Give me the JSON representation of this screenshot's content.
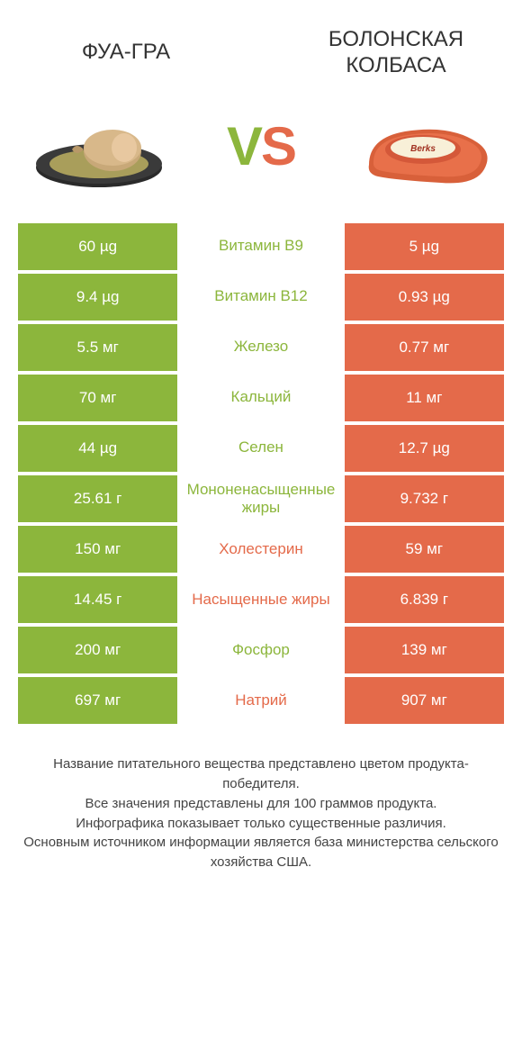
{
  "colors": {
    "green": "#8cb63c",
    "orange": "#e46a4a",
    "green_text": "#8cb63c",
    "orange_text": "#e46a4a",
    "bg": "#ffffff"
  },
  "header": {
    "left_title": "ФУА-ГРА",
    "right_title": "БОЛОНСКАЯ КОЛБАСА",
    "vs_v": "V",
    "vs_s": "S"
  },
  "rows": [
    {
      "left": "60 µg",
      "mid": "Витамин B9",
      "right": "5 µg",
      "winner": "left"
    },
    {
      "left": "9.4 µg",
      "mid": "Витамин B12",
      "right": "0.93 µg",
      "winner": "left"
    },
    {
      "left": "5.5 мг",
      "mid": "Железо",
      "right": "0.77 мг",
      "winner": "left"
    },
    {
      "left": "70 мг",
      "mid": "Кальций",
      "right": "11 мг",
      "winner": "left"
    },
    {
      "left": "44 µg",
      "mid": "Селен",
      "right": "12.7 µg",
      "winner": "left"
    },
    {
      "left": "25.61 г",
      "mid": "Мононенасыщенные жиры",
      "right": "9.732 г",
      "winner": "left"
    },
    {
      "left": "150 мг",
      "mid": "Холестерин",
      "right": "59 мг",
      "winner": "right"
    },
    {
      "left": "14.45 г",
      "mid": "Насыщенные жиры",
      "right": "6.839 г",
      "winner": "right"
    },
    {
      "left": "200 мг",
      "mid": "Фосфор",
      "right": "139 мг",
      "winner": "left"
    },
    {
      "left": "697 мг",
      "mid": "Натрий",
      "right": "907 мг",
      "winner": "right"
    }
  ],
  "footer": {
    "line1": "Название питательного вещества представлено цветом продукта-победителя.",
    "line2": "Все значения представлены для 100 граммов продукта.",
    "line3": "Инфографика показывает только существенные различия.",
    "line4": "Основным источником информации является база министерства сельского хозяйства США."
  }
}
